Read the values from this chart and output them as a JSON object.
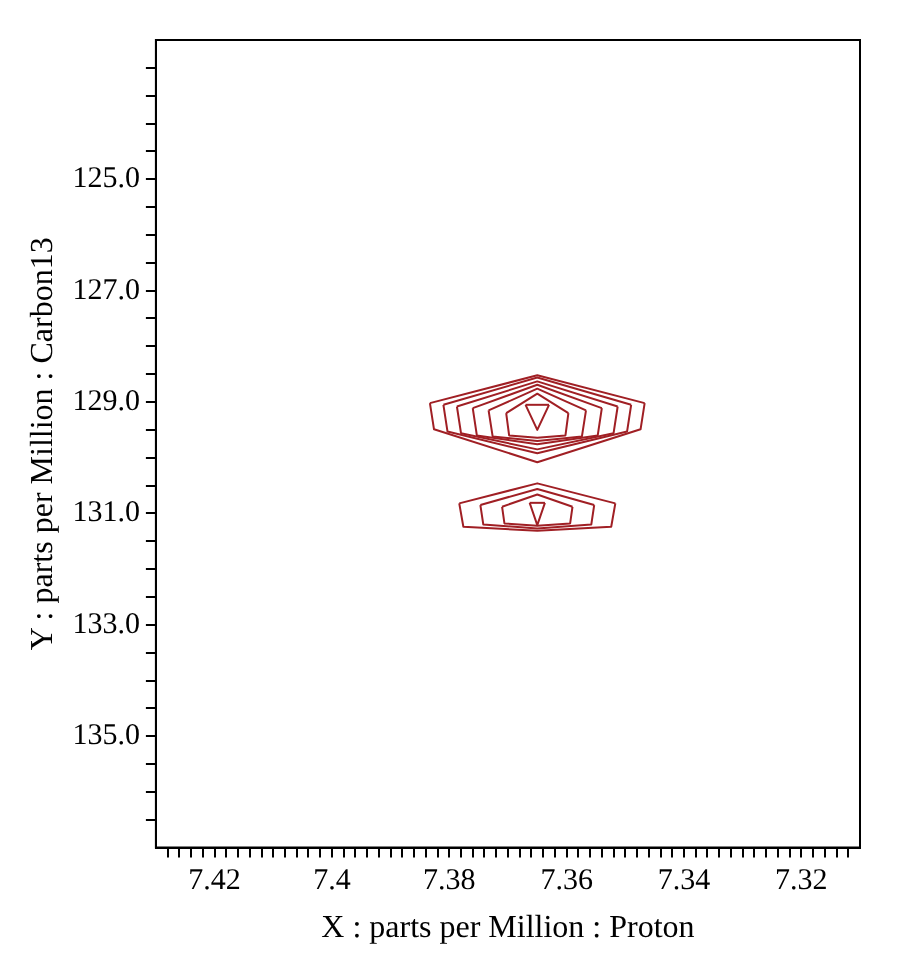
{
  "chart_data": {
    "type": "line",
    "xlabel": "X : parts per Million : Proton",
    "ylabel": "Y : parts per Million : Carbon13",
    "xlim": [
      7.43,
      7.31
    ],
    "ylim": [
      137,
      122.5
    ],
    "xticks": [
      {
        "value": 7.428,
        "label": null
      },
      {
        "value": 7.426,
        "label": null
      },
      {
        "value": 7.424,
        "label": null
      },
      {
        "value": 7.422,
        "label": null
      },
      7.42,
      {
        "value": 7.418,
        "label": null
      },
      {
        "value": 7.416,
        "label": null
      },
      {
        "value": 7.414,
        "label": null
      },
      {
        "value": 7.412,
        "label": null
      },
      {
        "value": 7.41,
        "label": null
      },
      {
        "value": 7.408,
        "label": null
      },
      {
        "value": 7.406,
        "label": null
      },
      {
        "value": 7.404,
        "label": null
      },
      {
        "value": 7.402,
        "label": null
      },
      7.4,
      {
        "value": 7.398,
        "label": null
      },
      {
        "value": 7.396,
        "label": null
      },
      {
        "value": 7.394,
        "label": null
      },
      {
        "value": 7.392,
        "label": null
      },
      {
        "value": 7.39,
        "label": null
      },
      {
        "value": 7.388,
        "label": null
      },
      {
        "value": 7.386,
        "label": null
      },
      {
        "value": 7.384,
        "label": null
      },
      {
        "value": 7.382,
        "label": null
      },
      7.38,
      {
        "value": 7.378,
        "label": null
      },
      {
        "value": 7.376,
        "label": null
      },
      {
        "value": 7.374,
        "label": null
      },
      {
        "value": 7.372,
        "label": null
      },
      {
        "value": 7.37,
        "label": null
      },
      {
        "value": 7.368,
        "label": null
      },
      {
        "value": 7.366,
        "label": null
      },
      {
        "value": 7.364,
        "label": null
      },
      {
        "value": 7.362,
        "label": null
      },
      7.36,
      {
        "value": 7.358,
        "label": null
      },
      {
        "value": 7.356,
        "label": null
      },
      {
        "value": 7.354,
        "label": null
      },
      {
        "value": 7.352,
        "label": null
      },
      {
        "value": 7.35,
        "label": null
      },
      {
        "value": 7.348,
        "label": null
      },
      {
        "value": 7.346,
        "label": null
      },
      {
        "value": 7.344,
        "label": null
      },
      {
        "value": 7.342,
        "label": null
      },
      7.34,
      {
        "value": 7.338,
        "label": null
      },
      {
        "value": 7.336,
        "label": null
      },
      {
        "value": 7.334,
        "label": null
      },
      {
        "value": 7.332,
        "label": null
      },
      {
        "value": 7.33,
        "label": null
      },
      {
        "value": 7.328,
        "label": null
      },
      {
        "value": 7.326,
        "label": null
      },
      {
        "value": 7.324,
        "label": null
      },
      {
        "value": 7.322,
        "label": null
      },
      7.32,
      {
        "value": 7.318,
        "label": null
      },
      {
        "value": 7.316,
        "label": null
      },
      {
        "value": 7.314,
        "label": null
      },
      {
        "value": 7.312,
        "label": null
      }
    ],
    "yticks": [
      {
        "value": 123,
        "label": null
      },
      {
        "value": 123.5,
        "label": null
      },
      {
        "value": 124,
        "label": null
      },
      {
        "value": 124.5,
        "label": null
      },
      {
        "value": 125,
        "label": "125.0"
      },
      {
        "value": 125.5,
        "label": null
      },
      {
        "value": 126,
        "label": null
      },
      {
        "value": 126.5,
        "label": null
      },
      {
        "value": 127,
        "label": "127.0"
      },
      {
        "value": 127.5,
        "label": null
      },
      {
        "value": 128,
        "label": null
      },
      {
        "value": 128.5,
        "label": null
      },
      {
        "value": 129,
        "label": "129.0"
      },
      {
        "value": 129.5,
        "label": null
      },
      {
        "value": 130,
        "label": null
      },
      {
        "value": 130.5,
        "label": null
      },
      {
        "value": 131,
        "label": "131.0"
      },
      {
        "value": 131.5,
        "label": null
      },
      {
        "value": 132,
        "label": null
      },
      {
        "value": 132.5,
        "label": null
      },
      {
        "value": 133,
        "label": "133.0"
      },
      {
        "value": 133.5,
        "label": null
      },
      {
        "value": 134,
        "label": null
      },
      {
        "value": 134.5,
        "label": null
      },
      {
        "value": 135,
        "label": "135.0"
      },
      {
        "value": 135.5,
        "label": null
      },
      {
        "value": 136,
        "label": null
      },
      {
        "value": 136.5,
        "label": null
      }
    ],
    "grid": false,
    "legend": false,
    "marker": "none",
    "line_style": "solid",
    "series": [
      {
        "color": "#a01f24",
        "x": [
          7.3833,
          7.365,
          7.3467
        ],
        "values": [
          129.02,
          128.52,
          129.02
        ]
      },
      {
        "color": "#a01f24",
        "x": [
          7.3833,
          7.3826,
          7.365,
          7.3474,
          7.3467
        ],
        "values": [
          129.02,
          129.49,
          130.08,
          129.49,
          129.02
        ]
      },
      {
        "color": "#a01f24",
        "x": [
          7.381,
          7.365,
          7.349
        ],
        "values": [
          129.05,
          128.56,
          129.05
        ]
      },
      {
        "color": "#a01f24",
        "x": [
          7.381,
          7.3803,
          7.365,
          7.3497,
          7.349
        ],
        "values": [
          129.05,
          129.53,
          129.92,
          129.53,
          129.05
        ]
      },
      {
        "color": "#a01f24",
        "x": [
          7.3787,
          7.365,
          7.3513
        ],
        "values": [
          129.08,
          128.63,
          129.08
        ]
      },
      {
        "color": "#a01f24",
        "x": [
          7.3787,
          7.378,
          7.365,
          7.352,
          7.3513
        ],
        "values": [
          129.08,
          129.56,
          129.85,
          129.56,
          129.08
        ]
      },
      {
        "color": "#a01f24",
        "x": [
          7.376,
          7.365,
          7.354
        ],
        "values": [
          129.11,
          128.69,
          129.11
        ]
      },
      {
        "color": "#a01f24",
        "x": [
          7.376,
          7.3753,
          7.365,
          7.3547,
          7.354
        ],
        "values": [
          129.11,
          129.6,
          129.76,
          129.6,
          129.11
        ]
      },
      {
        "color": "#a01f24",
        "x": [
          7.3733,
          7.365,
          7.3567
        ],
        "values": [
          129.15,
          128.76,
          129.15
        ]
      },
      {
        "color": "#a01f24",
        "x": [
          7.3733,
          7.3726,
          7.365,
          7.3574,
          7.3567
        ],
        "values": [
          129.15,
          129.62,
          129.7,
          129.62,
          129.15
        ]
      },
      {
        "color": "#a01f24",
        "x": [
          7.3703,
          7.365,
          7.3597
        ],
        "values": [
          129.2,
          128.85,
          129.2
        ]
      },
      {
        "color": "#a01f24",
        "x": [
          7.3703,
          7.3698,
          7.365,
          7.3602,
          7.3597
        ],
        "values": [
          129.2,
          129.6,
          129.64,
          129.6,
          129.2
        ]
      },
      {
        "color": "#a01f24",
        "x": [
          7.367,
          7.363
        ],
        "values": [
          129.05,
          129.05
        ]
      },
      {
        "color": "#a01f24",
        "x": [
          7.367,
          7.365,
          7.363
        ],
        "values": [
          129.05,
          129.5,
          129.05
        ]
      },
      {
        "color": "#a01f24",
        "x": [
          7.3783,
          7.365,
          7.3517
        ],
        "values": [
          130.82,
          130.46,
          130.82
        ]
      },
      {
        "color": "#a01f24",
        "x": [
          7.3783,
          7.3776,
          7.365,
          7.3524,
          7.3517
        ],
        "values": [
          130.82,
          131.24,
          131.31,
          131.24,
          130.82
        ]
      },
      {
        "color": "#a01f24",
        "x": [
          7.3747,
          7.365,
          7.3553
        ],
        "values": [
          130.85,
          130.56,
          130.85
        ]
      },
      {
        "color": "#a01f24",
        "x": [
          7.3747,
          7.3742,
          7.365,
          7.3558,
          7.3553
        ],
        "values": [
          130.85,
          131.2,
          131.27,
          131.2,
          130.85
        ]
      },
      {
        "color": "#a01f24",
        "x": [
          7.371,
          7.365,
          7.359
        ],
        "values": [
          130.88,
          130.66,
          130.88
        ]
      },
      {
        "color": "#a01f24",
        "x": [
          7.371,
          7.3706,
          7.365,
          7.3594,
          7.359
        ],
        "values": [
          130.88,
          131.18,
          131.22,
          131.18,
          130.88
        ]
      },
      {
        "color": "#a01f24",
        "x": [
          7.3663,
          7.3637
        ],
        "values": [
          130.81,
          130.81
        ]
      },
      {
        "color": "#a01f24",
        "x": [
          7.3663,
          7.365,
          7.3637
        ],
        "values": [
          130.81,
          131.21,
          130.81
        ]
      }
    ]
  }
}
